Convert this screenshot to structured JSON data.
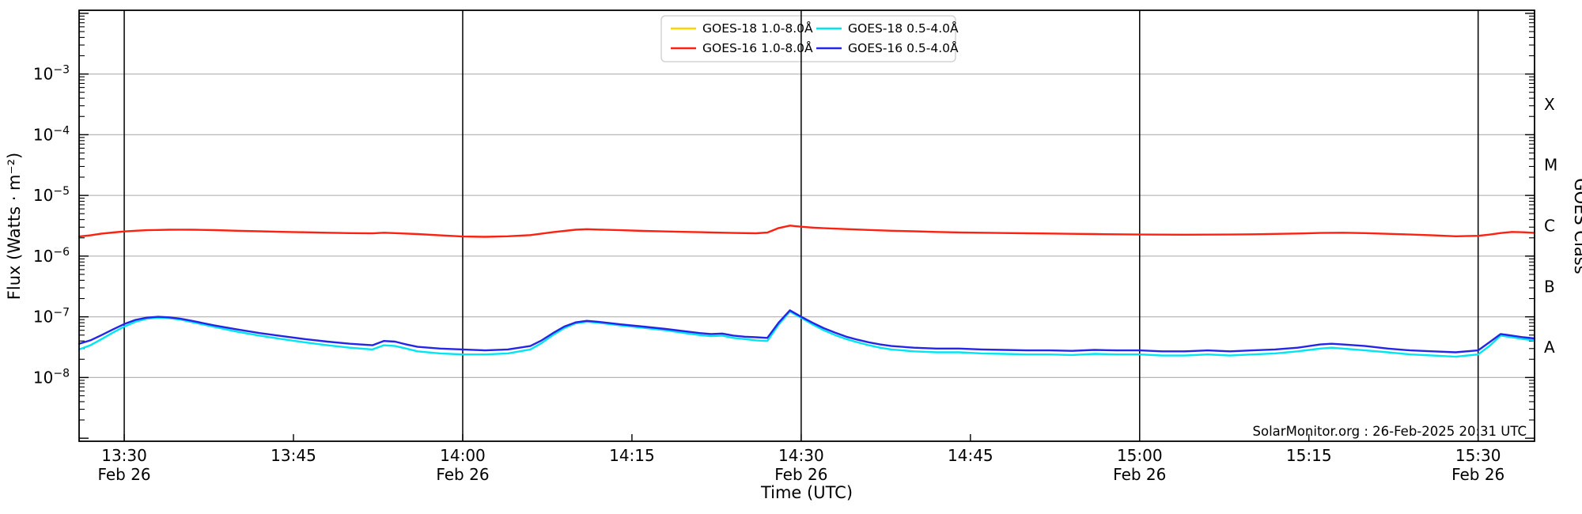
{
  "chart_data": {
    "type": "line",
    "title": "",
    "xlabel": "Time (UTC)",
    "ylabel": "Flux (Watts · m⁻²)",
    "ylabel_right": "GOES Class",
    "attribution": "SolarMonitor.org : 26-Feb-2025 20:31 UTC",
    "x_unit": "minutes after 13:00 UTC, 26-Feb-2025",
    "x_range_minutes": [
      26,
      155
    ],
    "ylim": [
      1e-09,
      0.011
    ],
    "grid": "horizontal-decades",
    "legend_position": "upper center, 2 columns",
    "y_axis_left": {
      "label": "Flux (Watts · m⁻²)",
      "ticks": [
        {
          "exp": -3,
          "label": "10⁻³"
        },
        {
          "exp": -4,
          "label": "10⁻⁴"
        },
        {
          "exp": -5,
          "label": "10⁻⁵"
        },
        {
          "exp": -6,
          "label": "10⁻⁶"
        },
        {
          "exp": -7,
          "label": "10⁻⁷"
        },
        {
          "exp": -8,
          "label": "10⁻⁸"
        }
      ]
    },
    "y_axis_right": {
      "label": "GOES Class",
      "classes": [
        {
          "label": "X",
          "center_exp": -3.5
        },
        {
          "label": "M",
          "center_exp": -4.5
        },
        {
          "label": "C",
          "center_exp": -5.5
        },
        {
          "label": "B",
          "center_exp": -6.5
        },
        {
          "label": "A",
          "center_exp": -7.5
        }
      ]
    },
    "x_axis": {
      "label": "Time (UTC)",
      "ticks": [
        {
          "m": 30,
          "time": "13:30",
          "date": "Feb 26"
        },
        {
          "m": 45,
          "time": "13:45"
        },
        {
          "m": 60,
          "time": "14:00",
          "date": "Feb 26"
        },
        {
          "m": 75,
          "time": "14:15"
        },
        {
          "m": 90,
          "time": "14:30",
          "date": "Feb 26"
        },
        {
          "m": 105,
          "time": "14:45"
        },
        {
          "m": 120,
          "time": "15:00",
          "date": "Feb 26"
        },
        {
          "m": 135,
          "time": "15:15"
        },
        {
          "m": 150,
          "time": "15:30",
          "date": "Feb 26"
        }
      ]
    },
    "legend": {
      "entries": [
        {
          "label": "GOES-18 1.0-8.0Å",
          "color": "#ffd200"
        },
        {
          "label": "GOES-16 1.0-8.0Å",
          "color": "#ff2010"
        },
        {
          "label": "GOES-18 0.5-4.0Å",
          "color": "#00e5f2"
        },
        {
          "label": "GOES-16 0.5-4.0Å",
          "color": "#2525e8"
        }
      ]
    },
    "series": [
      {
        "name": "GOES-18 1.0-8.0Å",
        "color": "#ffd200",
        "points": []
      },
      {
        "name": "GOES-16 1.0-8.0Å",
        "color": "#ff2010",
        "points": [
          [
            26,
            2.1e-06
          ],
          [
            27,
            2.2e-06
          ],
          [
            28,
            2.35e-06
          ],
          [
            29,
            2.45e-06
          ],
          [
            30,
            2.55e-06
          ],
          [
            31,
            2.62e-06
          ],
          [
            32,
            2.67e-06
          ],
          [
            33,
            2.7e-06
          ],
          [
            34,
            2.72e-06
          ],
          [
            35,
            2.73e-06
          ],
          [
            36,
            2.72e-06
          ],
          [
            38,
            2.68e-06
          ],
          [
            40,
            2.62e-06
          ],
          [
            42,
            2.56e-06
          ],
          [
            44,
            2.51e-06
          ],
          [
            46,
            2.47e-06
          ],
          [
            48,
            2.43e-06
          ],
          [
            50,
            2.39e-06
          ],
          [
            52,
            2.37e-06
          ],
          [
            53,
            2.43e-06
          ],
          [
            54,
            2.39e-06
          ],
          [
            56,
            2.31e-06
          ],
          [
            58,
            2.2e-06
          ],
          [
            60,
            2.1e-06
          ],
          [
            62,
            2.08e-06
          ],
          [
            64,
            2.12e-06
          ],
          [
            66,
            2.22e-06
          ],
          [
            68,
            2.48e-06
          ],
          [
            70,
            2.72e-06
          ],
          [
            71,
            2.78e-06
          ],
          [
            72,
            2.74e-06
          ],
          [
            74,
            2.67e-06
          ],
          [
            76,
            2.6e-06
          ],
          [
            78,
            2.55e-06
          ],
          [
            80,
            2.5e-06
          ],
          [
            82,
            2.46e-06
          ],
          [
            84,
            2.41e-06
          ],
          [
            86,
            2.38e-06
          ],
          [
            87,
            2.44e-06
          ],
          [
            88,
            2.9e-06
          ],
          [
            89,
            3.18e-06
          ],
          [
            90,
            3.05e-06
          ],
          [
            91,
            2.95e-06
          ],
          [
            92,
            2.88e-06
          ],
          [
            94,
            2.79e-06
          ],
          [
            96,
            2.7e-06
          ],
          [
            98,
            2.62e-06
          ],
          [
            100,
            2.56e-06
          ],
          [
            102,
            2.5e-06
          ],
          [
            104,
            2.46e-06
          ],
          [
            106,
            2.43e-06
          ],
          [
            108,
            2.4e-06
          ],
          [
            110,
            2.38e-06
          ],
          [
            112,
            2.36e-06
          ],
          [
            114,
            2.33e-06
          ],
          [
            116,
            2.31e-06
          ],
          [
            118,
            2.29e-06
          ],
          [
            120,
            2.27e-06
          ],
          [
            122,
            2.26e-06
          ],
          [
            124,
            2.25e-06
          ],
          [
            126,
            2.26e-06
          ],
          [
            128,
            2.27e-06
          ],
          [
            130,
            2.29e-06
          ],
          [
            132,
            2.32e-06
          ],
          [
            134,
            2.36e-06
          ],
          [
            136,
            2.41e-06
          ],
          [
            138,
            2.43e-06
          ],
          [
            140,
            2.39e-06
          ],
          [
            142,
            2.33e-06
          ],
          [
            144,
            2.27e-06
          ],
          [
            146,
            2.2e-06
          ],
          [
            148,
            2.12e-06
          ],
          [
            150,
            2.16e-06
          ],
          [
            151,
            2.26e-06
          ],
          [
            152,
            2.4e-06
          ],
          [
            153,
            2.5e-06
          ],
          [
            154,
            2.47e-06
          ],
          [
            155,
            2.42e-06
          ]
        ]
      },
      {
        "name": "GOES-18 0.5-4.0Å",
        "color": "#00e5f2",
        "points": [
          [
            26,
            2.9e-08
          ],
          [
            27,
            3.4e-08
          ],
          [
            28,
            4.3e-08
          ],
          [
            29,
            5.5e-08
          ],
          [
            30,
            6.9e-08
          ],
          [
            31,
            8.3e-08
          ],
          [
            32,
            9.3e-08
          ],
          [
            33,
            9.7e-08
          ],
          [
            34,
            9.5e-08
          ],
          [
            35,
            9e-08
          ],
          [
            36,
            8.2e-08
          ],
          [
            38,
            6.8e-08
          ],
          [
            40,
            5.7e-08
          ],
          [
            42,
            4.9e-08
          ],
          [
            44,
            4.3e-08
          ],
          [
            46,
            3.8e-08
          ],
          [
            48,
            3.4e-08
          ],
          [
            50,
            3.1e-08
          ],
          [
            52,
            2.9e-08
          ],
          [
            53,
            3.4e-08
          ],
          [
            54,
            3.3e-08
          ],
          [
            55,
            3e-08
          ],
          [
            56,
            2.7e-08
          ],
          [
            58,
            2.5e-08
          ],
          [
            60,
            2.4e-08
          ],
          [
            62,
            2.4e-08
          ],
          [
            64,
            2.5e-08
          ],
          [
            66,
            2.9e-08
          ],
          [
            67,
            3.7e-08
          ],
          [
            68,
            5e-08
          ],
          [
            69,
            6.5e-08
          ],
          [
            70,
            7.8e-08
          ],
          [
            71,
            8.3e-08
          ],
          [
            72,
            8e-08
          ],
          [
            74,
            7.2e-08
          ],
          [
            76,
            6.6e-08
          ],
          [
            78,
            6e-08
          ],
          [
            80,
            5.3e-08
          ],
          [
            81,
            5e-08
          ],
          [
            82,
            4.8e-08
          ],
          [
            83,
            4.9e-08
          ],
          [
            84,
            4.5e-08
          ],
          [
            85,
            4.3e-08
          ],
          [
            86,
            4.1e-08
          ],
          [
            87,
            4e-08
          ],
          [
            88,
            7.4e-08
          ],
          [
            89,
            1.22e-07
          ],
          [
            90,
            9.6e-08
          ],
          [
            91,
            7.5e-08
          ],
          [
            92,
            6e-08
          ],
          [
            93,
            5e-08
          ],
          [
            94,
            4.3e-08
          ],
          [
            95,
            3.8e-08
          ],
          [
            96,
            3.4e-08
          ],
          [
            97,
            3.1e-08
          ],
          [
            98,
            2.9e-08
          ],
          [
            100,
            2.7e-08
          ],
          [
            102,
            2.6e-08
          ],
          [
            104,
            2.6e-08
          ],
          [
            106,
            2.5e-08
          ],
          [
            108,
            2.45e-08
          ],
          [
            110,
            2.4e-08
          ],
          [
            112,
            2.4e-08
          ],
          [
            114,
            2.35e-08
          ],
          [
            116,
            2.45e-08
          ],
          [
            118,
            2.4e-08
          ],
          [
            120,
            2.4e-08
          ],
          [
            122,
            2.3e-08
          ],
          [
            124,
            2.3e-08
          ],
          [
            126,
            2.4e-08
          ],
          [
            128,
            2.3e-08
          ],
          [
            130,
            2.4e-08
          ],
          [
            132,
            2.5e-08
          ],
          [
            134,
            2.7e-08
          ],
          [
            136,
            3e-08
          ],
          [
            137,
            3.1e-08
          ],
          [
            138,
            3e-08
          ],
          [
            140,
            2.8e-08
          ],
          [
            142,
            2.6e-08
          ],
          [
            144,
            2.4e-08
          ],
          [
            146,
            2.3e-08
          ],
          [
            148,
            2.2e-08
          ],
          [
            150,
            2.4e-08
          ],
          [
            151,
            3.3e-08
          ],
          [
            152,
            4.9e-08
          ],
          [
            153,
            4.6e-08
          ],
          [
            154,
            4.3e-08
          ],
          [
            155,
            4.1e-08
          ]
        ]
      },
      {
        "name": "GOES-16 0.5-4.0Å",
        "color": "#2525e8",
        "points": [
          [
            26,
            3.6e-08
          ],
          [
            27,
            4.1e-08
          ],
          [
            28,
            5e-08
          ],
          [
            29,
            6.2e-08
          ],
          [
            30,
            7.6e-08
          ],
          [
            31,
            8.9e-08
          ],
          [
            32,
            9.7e-08
          ],
          [
            33,
            1e-07
          ],
          [
            34,
            9.8e-08
          ],
          [
            35,
            9.3e-08
          ],
          [
            36,
            8.6e-08
          ],
          [
            38,
            7.2e-08
          ],
          [
            40,
            6.2e-08
          ],
          [
            42,
            5.4e-08
          ],
          [
            44,
            4.8e-08
          ],
          [
            46,
            4.3e-08
          ],
          [
            48,
            3.9e-08
          ],
          [
            50,
            3.6e-08
          ],
          [
            52,
            3.4e-08
          ],
          [
            53,
            4e-08
          ],
          [
            54,
            3.9e-08
          ],
          [
            55,
            3.5e-08
          ],
          [
            56,
            3.2e-08
          ],
          [
            58,
            3e-08
          ],
          [
            60,
            2.9e-08
          ],
          [
            62,
            2.8e-08
          ],
          [
            64,
            2.9e-08
          ],
          [
            66,
            3.3e-08
          ],
          [
            67,
            4.1e-08
          ],
          [
            68,
            5.4e-08
          ],
          [
            69,
            6.9e-08
          ],
          [
            70,
            8.1e-08
          ],
          [
            71,
            8.6e-08
          ],
          [
            72,
            8.3e-08
          ],
          [
            74,
            7.5e-08
          ],
          [
            76,
            6.9e-08
          ],
          [
            78,
            6.3e-08
          ],
          [
            80,
            5.7e-08
          ],
          [
            81,
            5.4e-08
          ],
          [
            82,
            5.2e-08
          ],
          [
            83,
            5.3e-08
          ],
          [
            84,
            4.9e-08
          ],
          [
            85,
            4.7e-08
          ],
          [
            86,
            4.6e-08
          ],
          [
            87,
            4.5e-08
          ],
          [
            88,
            8e-08
          ],
          [
            89,
            1.28e-07
          ],
          [
            90,
            1e-07
          ],
          [
            91,
            8e-08
          ],
          [
            92,
            6.5e-08
          ],
          [
            93,
            5.5e-08
          ],
          [
            94,
            4.7e-08
          ],
          [
            95,
            4.2e-08
          ],
          [
            96,
            3.8e-08
          ],
          [
            97,
            3.5e-08
          ],
          [
            98,
            3.3e-08
          ],
          [
            100,
            3.1e-08
          ],
          [
            102,
            3e-08
          ],
          [
            104,
            3e-08
          ],
          [
            106,
            2.9e-08
          ],
          [
            108,
            2.85e-08
          ],
          [
            110,
            2.8e-08
          ],
          [
            112,
            2.8e-08
          ],
          [
            114,
            2.75e-08
          ],
          [
            116,
            2.85e-08
          ],
          [
            118,
            2.8e-08
          ],
          [
            120,
            2.8e-08
          ],
          [
            122,
            2.7e-08
          ],
          [
            124,
            2.7e-08
          ],
          [
            126,
            2.8e-08
          ],
          [
            128,
            2.7e-08
          ],
          [
            130,
            2.8e-08
          ],
          [
            132,
            2.9e-08
          ],
          [
            134,
            3.1e-08
          ],
          [
            136,
            3.5e-08
          ],
          [
            137,
            3.6e-08
          ],
          [
            138,
            3.5e-08
          ],
          [
            140,
            3.3e-08
          ],
          [
            142,
            3e-08
          ],
          [
            144,
            2.8e-08
          ],
          [
            146,
            2.7e-08
          ],
          [
            148,
            2.6e-08
          ],
          [
            150,
            2.8e-08
          ],
          [
            151,
            3.8e-08
          ],
          [
            152,
            5.2e-08
          ],
          [
            153,
            4.9e-08
          ],
          [
            154,
            4.6e-08
          ],
          [
            155,
            4.4e-08
          ]
        ]
      }
    ],
    "colors": {
      "grid": "#b8b8b8",
      "date_line": "#000000",
      "spine": "#000000",
      "background": "#ffffff",
      "legend_border": "#cccccc"
    }
  }
}
